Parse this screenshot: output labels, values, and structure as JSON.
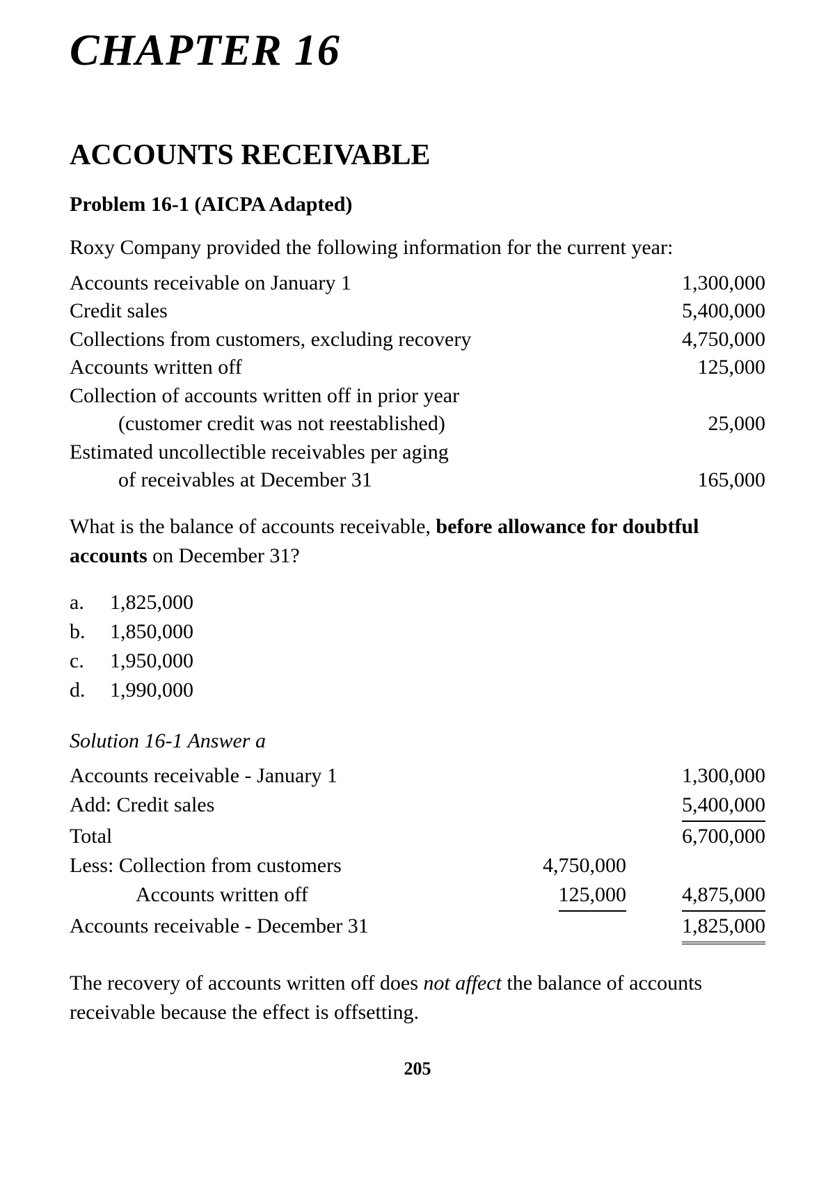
{
  "chapter": "CHAPTER 16",
  "section": "ACCOUNTS RECEIVABLE",
  "problem": {
    "heading": "Problem 16-1 (AICPA  Adapted)",
    "intro": "Roxy Company provided the following information for the current year:",
    "items": [
      {
        "label": "Accounts receivable on January 1",
        "amount": "1,300,000"
      },
      {
        "label": "Credit sales",
        "amount": "5,400,000"
      },
      {
        "label": "Collections from customers, excluding recovery",
        "amount": "4,750,000"
      },
      {
        "label": "Accounts written off",
        "amount": "125,000"
      },
      {
        "label1": "Collection of accounts written off in prior year",
        "label2": "(customer credit was not reestablished)",
        "amount": "25,000"
      },
      {
        "label1": "Estimated uncollectible receivables per aging",
        "label2": "of receivables at December 31",
        "amount": "165,000"
      }
    ],
    "question_pre": "What is the balance of accounts receivable, ",
    "question_bold1": "before allowance for doubtful accounts",
    "question_post": " on December 31?",
    "choices": {
      "a": "1,825,000",
      "b": "1,850,000",
      "c": "1,950,000",
      "d": "1,990,000"
    }
  },
  "solution": {
    "heading": "Solution 16-1 Answer a",
    "rows": {
      "ar_jan1_label": "Accounts receivable - January 1",
      "ar_jan1_amt": "1,300,000",
      "add_label": "Add: Credit sales",
      "add_amt": "5,400,000",
      "total_label": "Total",
      "total_amt": "6,700,000",
      "less_label": "Less:  Collection from customers",
      "less_mid": "4,750,000",
      "wo_label": "Accounts written off",
      "wo_mid": "125,000",
      "less_total": "4,875,000",
      "ar_dec31_label": "Accounts receivable - December 31",
      "ar_dec31_amt": "1,825,000"
    },
    "note_pre": "The recovery of accounts written off does ",
    "note_em": "not affect",
    "note_post": " the balance of accounts receivable because the effect is offsetting."
  },
  "page_number": "205",
  "letters": {
    "a": "a.",
    "b": "b.",
    "c": "c.",
    "d": "d."
  }
}
